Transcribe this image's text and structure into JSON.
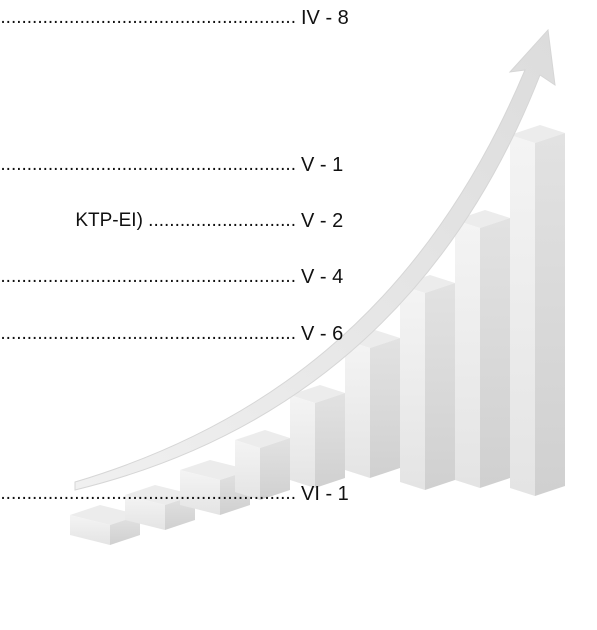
{
  "toc": {
    "entries": [
      {
        "text": "............................................................",
        "page": "IV - 8"
      },
      {
        "text": "............................................................",
        "page": "V - 1"
      },
      {
        "text": "KTP-EI)  ............................",
        "page": "V - 2"
      },
      {
        "text": "............................................................",
        "page": "V - 4"
      },
      {
        "text": "............................................................",
        "page": "V - 6"
      },
      {
        "text": "............................................................",
        "page": "VI - 1"
      }
    ]
  }
}
